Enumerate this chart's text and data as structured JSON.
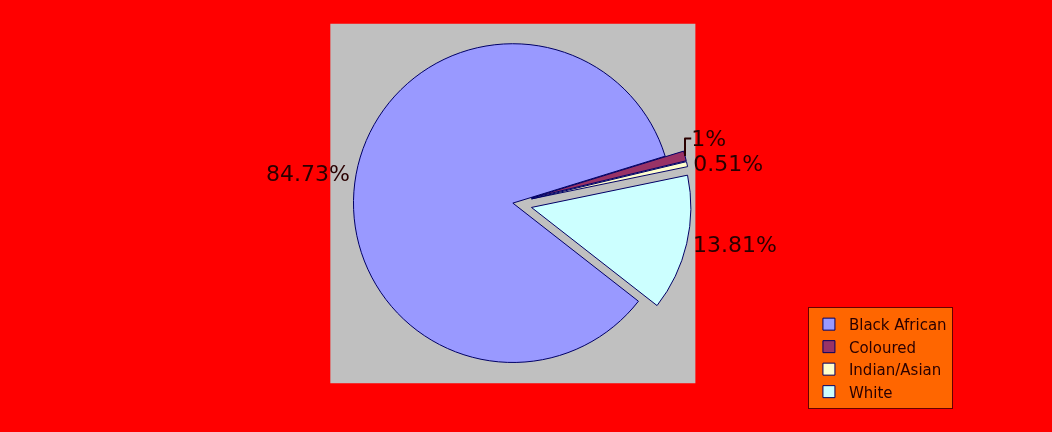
{
  "chart_data": {
    "type": "pie",
    "categories": [
      "Black African",
      "Coloured",
      "Indian/Asian",
      "White"
    ],
    "values": [
      84.73,
      1,
      0.51,
      13.81
    ],
    "value_labels": [
      "84.73%",
      "1%",
      "0.51%",
      "13.81%"
    ],
    "colors": [
      "#9999ff",
      "#993366",
      "#ffffcc",
      "#ccffff"
    ],
    "legend": "bottom right"
  }
}
